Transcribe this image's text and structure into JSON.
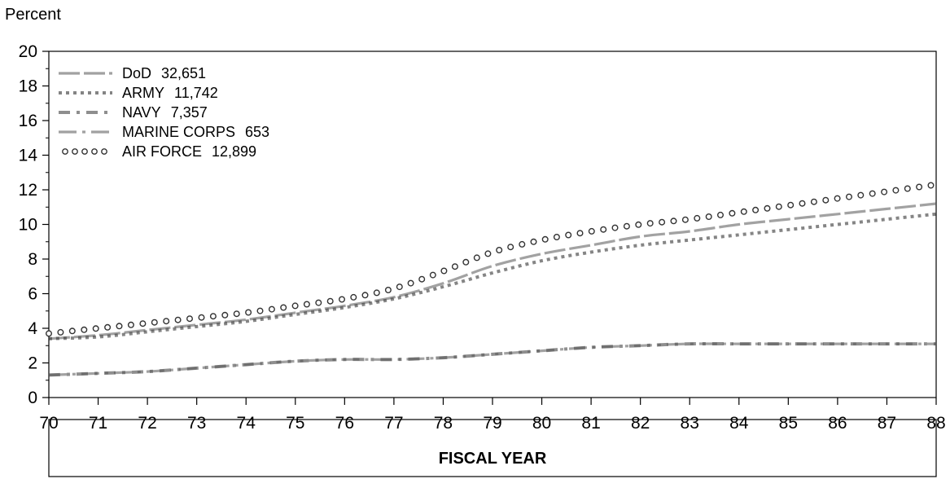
{
  "chart_data": {
    "type": "line",
    "title": "",
    "ylabel": "Percent",
    "xlabel": "FISCAL YEAR",
    "xlim": [
      70,
      88
    ],
    "ylim": [
      0,
      20
    ],
    "x_ticks": [
      "70",
      "71",
      "72",
      "73",
      "74",
      "75",
      "76",
      "77",
      "78",
      "79",
      "80",
      "81",
      "82",
      "83",
      "84",
      "85",
      "86",
      "87",
      "88"
    ],
    "y_ticks": [
      "0",
      "2",
      "4",
      "6",
      "8",
      "10",
      "12",
      "14",
      "16",
      "18",
      "20"
    ],
    "grid": false,
    "legend_position": "top-left",
    "x": [
      70,
      71,
      72,
      73,
      74,
      75,
      76,
      77,
      78,
      79,
      80,
      81,
      82,
      83,
      84,
      85,
      86,
      87,
      88
    ],
    "series": [
      {
        "name": "DoD",
        "count": "32,651",
        "style": "long-dash",
        "values": [
          3.4,
          3.6,
          3.9,
          4.2,
          4.5,
          4.9,
          5.3,
          5.8,
          6.6,
          7.6,
          8.3,
          8.8,
          9.3,
          9.6,
          10.0,
          10.3,
          10.6,
          10.9,
          11.2
        ]
      },
      {
        "name": "ARMY",
        "count": "11,742",
        "style": "square-dots",
        "values": [
          3.4,
          3.5,
          3.8,
          4.1,
          4.4,
          4.8,
          5.2,
          5.7,
          6.4,
          7.2,
          7.9,
          8.4,
          8.8,
          9.1,
          9.4,
          9.7,
          10.0,
          10.3,
          10.6
        ]
      },
      {
        "name": "NAVY",
        "count": "7,357",
        "style": "dash-dot",
        "values": [
          1.3,
          1.4,
          1.5,
          1.7,
          1.9,
          2.1,
          2.2,
          2.2,
          2.3,
          2.5,
          2.7,
          2.9,
          3.0,
          3.1,
          3.1,
          3.1,
          3.1,
          3.1,
          3.1
        ]
      },
      {
        "name": "MARINE CORPS",
        "count": "653",
        "style": "long-dash-dot",
        "values": [
          1.3,
          1.4,
          1.5,
          1.7,
          1.9,
          2.1,
          2.2,
          2.2,
          2.3,
          2.5,
          2.7,
          2.9,
          3.0,
          3.1,
          3.1,
          3.1,
          3.1,
          3.1,
          3.1
        ]
      },
      {
        "name": "AIR FORCE",
        "count": "12,899",
        "style": "circles",
        "values": [
          3.7,
          4.0,
          4.3,
          4.6,
          4.9,
          5.3,
          5.7,
          6.3,
          7.3,
          8.4,
          9.1,
          9.6,
          10.0,
          10.3,
          10.7,
          11.1,
          11.5,
          11.9,
          12.3
        ]
      }
    ]
  }
}
